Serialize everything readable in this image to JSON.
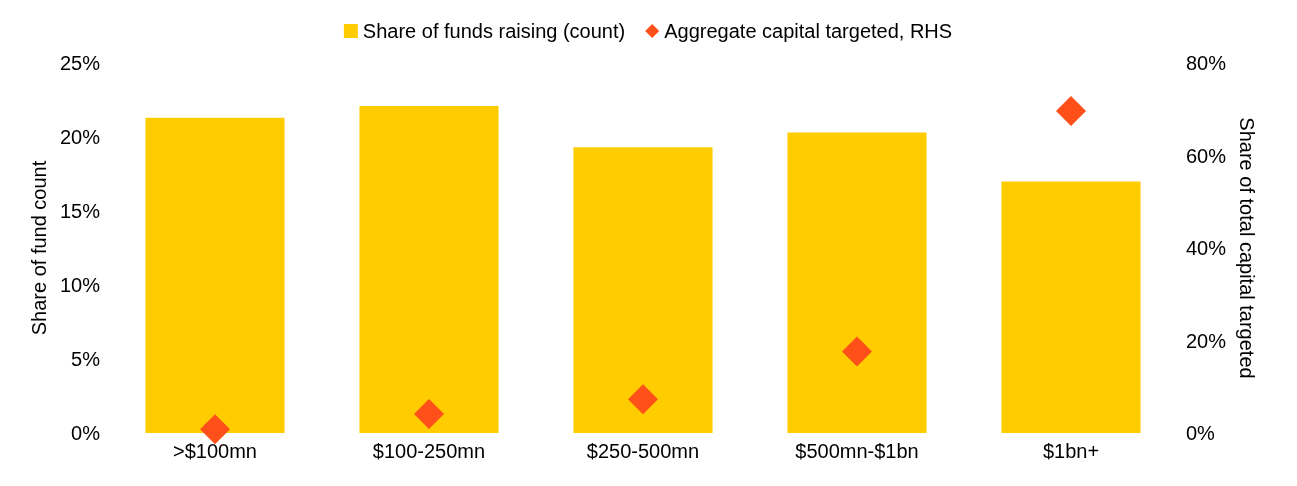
{
  "chart_data": {
    "type": "bar",
    "categories": [
      ">$100mn",
      "$100-250mn",
      "$250-500mn",
      "$500mn-$1bn",
      "$1bn+"
    ],
    "series": [
      {
        "name": "Share of funds raising (count)",
        "color": "#ffcc00",
        "values": [
          21.3,
          22.1,
          19.3,
          20.3,
          17.0
        ]
      },
      {
        "name": "Aggregate capital targeted, RHS",
        "type": "scatter",
        "axis": "y2",
        "marker": "diamond",
        "color": "#ff5019",
        "values": [
          0.8,
          4.1,
          7.3,
          17.6,
          69.6
        ]
      }
    ],
    "ylabel": "Share of fund count",
    "y2label": "Share of total capital targeted",
    "ylim": [
      0,
      25
    ],
    "yticks": [
      {
        "value": 0,
        "label": "0%"
      },
      {
        "value": 5,
        "label": "5%"
      },
      {
        "value": 10,
        "label": "10%"
      },
      {
        "value": 15,
        "label": "15%"
      },
      {
        "value": 20,
        "label": "20%"
      },
      {
        "value": 25,
        "label": "25%"
      }
    ],
    "y2lim": [
      0,
      80
    ],
    "y2ticks": [
      {
        "value": 0,
        "label": "0%"
      },
      {
        "value": 20,
        "label": "20%"
      },
      {
        "value": 40,
        "label": "40%"
      },
      {
        "value": 60,
        "label": "60%"
      },
      {
        "value": 80,
        "label": "80%"
      }
    ],
    "grid": false,
    "legend": "top"
  }
}
